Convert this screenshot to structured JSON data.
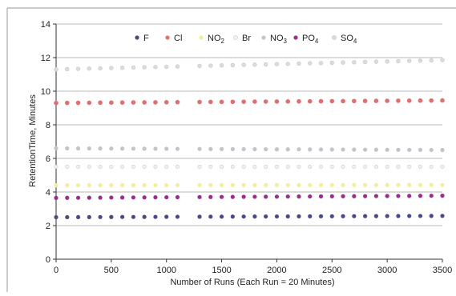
{
  "chart_data": {
    "type": "scatter",
    "title": "",
    "xlabel": "Number of Runs (Each Run = 20 Minutes)",
    "ylabel": "RetentionTime, Minutes",
    "xlim": [
      0,
      3500
    ],
    "ylim": [
      0,
      14
    ],
    "x_ticks": [
      "0",
      "500",
      "1000",
      "1500",
      "2000",
      "2500",
      "3000",
      "3500"
    ],
    "y_ticks": [
      "0",
      "2",
      "4",
      "6",
      "8",
      "10",
      "12",
      "14"
    ],
    "grid": "horizontal",
    "legend_position": "top",
    "x_gap": [
      1130,
      1280
    ],
    "x_step": 100,
    "series": [
      {
        "name": "F",
        "sub": "",
        "color": "#4a4a8a",
        "start": 2.5,
        "end": 2.58,
        "size": 2.6
      },
      {
        "name": "Cl",
        "sub": "",
        "color": "#e07070",
        "start": 9.3,
        "end": 9.45,
        "size": 2.8
      },
      {
        "name": "NO",
        "sub": "2",
        "color": "#f2ee9a",
        "start": 4.4,
        "end": 4.42,
        "size": 2.6
      },
      {
        "name": "Br",
        "sub": "",
        "color": "#f2f2f2",
        "start": 5.5,
        "end": 5.5,
        "size": 2.2
      },
      {
        "name": "NO",
        "sub": "3",
        "color": "#c8c0cc",
        "start": 6.6,
        "end": 6.5,
        "size": 2.6
      },
      {
        "name": "PO",
        "sub": "4",
        "color": "#9b2d8f",
        "start": 3.65,
        "end": 3.78,
        "size": 2.6
      },
      {
        "name": "SO",
        "sub": "4",
        "color": "#dcdcdc",
        "start": 11.3,
        "end": 11.85,
        "size": 2.4
      }
    ]
  }
}
